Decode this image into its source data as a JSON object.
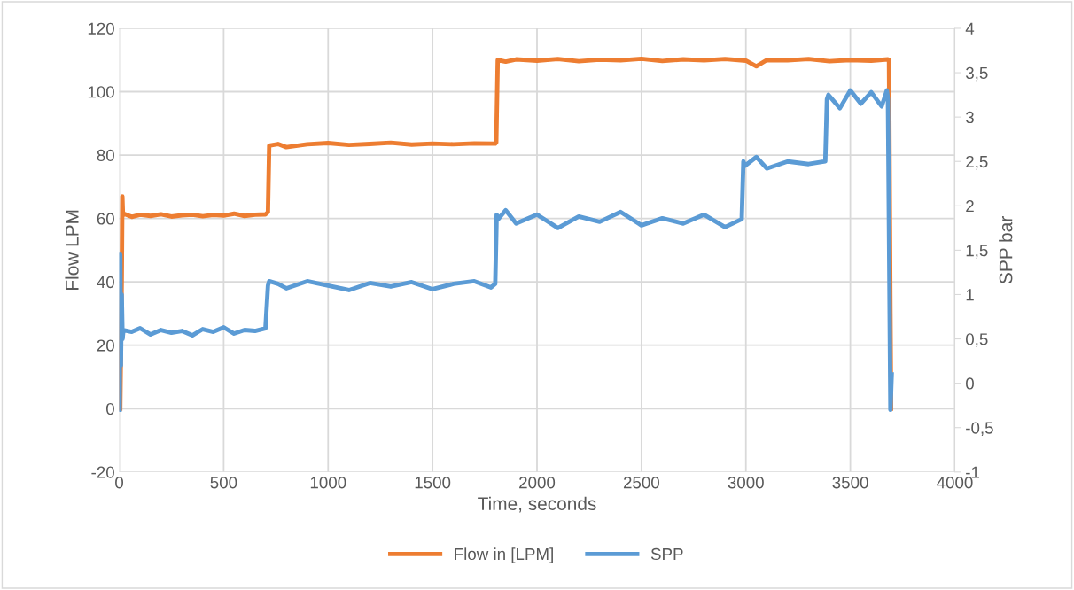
{
  "chart_data": {
    "type": "line",
    "xlabel": "Time, seconds",
    "ylabel": "Flow LPM",
    "y2label": "SPP bar",
    "xlim": [
      0,
      4000
    ],
    "xticks": [
      0,
      500,
      1000,
      1500,
      2000,
      2500,
      3000,
      3500,
      4000
    ],
    "ylim": [
      -20,
      120
    ],
    "yticks": [
      -20,
      0,
      20,
      40,
      60,
      80,
      100,
      120
    ],
    "y2lim": [
      -1,
      4
    ],
    "y2ticks": [
      {
        "value": -1,
        "label": "-1"
      },
      {
        "value": -0.5,
        "label": "-0,5"
      },
      {
        "value": 0,
        "label": "0"
      },
      {
        "value": 0.5,
        "label": "0,5"
      },
      {
        "value": 1,
        "label": "1"
      },
      {
        "value": 1.5,
        "label": "1,5"
      },
      {
        "value": 2,
        "label": "2"
      },
      {
        "value": 2.5,
        "label": "2,5"
      },
      {
        "value": 3,
        "label": "3"
      },
      {
        "value": 3.5,
        "label": "3,5"
      },
      {
        "value": 4,
        "label": "4"
      }
    ],
    "grid": true,
    "legend": "bottom",
    "line_style": "solid",
    "marker": "none",
    "series": [
      {
        "name": "Flow in [LPM]",
        "color": "#ed7d31",
        "x": [
          5,
          12,
          15,
          18,
          22,
          60,
          100,
          150,
          200,
          250,
          300,
          350,
          400,
          450,
          500,
          550,
          600,
          650,
          700,
          712,
          718,
          760,
          800,
          900,
          1000,
          1100,
          1200,
          1300,
          1400,
          1500,
          1600,
          1700,
          1800,
          1805,
          1812,
          1850,
          1900,
          2000,
          2100,
          2200,
          2300,
          2400,
          2500,
          2600,
          2700,
          2800,
          2900,
          3000,
          3050,
          3100,
          3200,
          3300,
          3400,
          3500,
          3600,
          3680,
          3685,
          3692,
          3695
        ],
        "values": [
          0,
          40,
          67,
          61,
          61.5,
          60.5,
          61.2,
          60.8,
          61.3,
          60.6,
          61,
          61.2,
          60.7,
          61.1,
          60.9,
          61.5,
          60.8,
          61.2,
          61.3,
          62,
          83,
          83.5,
          82.5,
          83.4,
          83.8,
          83.2,
          83.5,
          83.9,
          83.3,
          83.6,
          83.4,
          83.7,
          83.6,
          84,
          110,
          109.5,
          110.2,
          109.8,
          110.3,
          109.6,
          110.1,
          109.9,
          110.4,
          109.7,
          110.2,
          109.9,
          110.3,
          109.8,
          108,
          110,
          109.9,
          110.3,
          109.6,
          110,
          109.8,
          110.2,
          110,
          30,
          0
        ]
      },
      {
        "name": "SPP",
        "color": "#5b9bd5",
        "x": [
          2,
          5,
          8,
          12,
          16,
          20,
          60,
          100,
          150,
          200,
          250,
          300,
          350,
          400,
          450,
          500,
          550,
          600,
          650,
          700,
          712,
          718,
          760,
          800,
          900,
          1000,
          1100,
          1200,
          1300,
          1400,
          1500,
          1600,
          1700,
          1780,
          1800,
          1807,
          1815,
          1850,
          1900,
          2000,
          2100,
          2200,
          2300,
          2400,
          2500,
          2600,
          2700,
          2800,
          2900,
          2980,
          2988,
          2995,
          3050,
          3100,
          3200,
          3300,
          3380,
          3388,
          3395,
          3450,
          3500,
          3550,
          3600,
          3650,
          3675,
          3680,
          3692,
          3695,
          3698
        ],
        "values": [
          -0.3,
          1.45,
          0.2,
          1.0,
          0.5,
          0.6,
          0.58,
          0.62,
          0.55,
          0.6,
          0.57,
          0.59,
          0.54,
          0.61,
          0.58,
          0.63,
          0.56,
          0.6,
          0.59,
          0.62,
          1.1,
          1.15,
          1.12,
          1.07,
          1.15,
          1.1,
          1.05,
          1.13,
          1.09,
          1.14,
          1.06,
          1.12,
          1.15,
          1.08,
          1.12,
          1.9,
          1.85,
          1.95,
          1.8,
          1.9,
          1.75,
          1.88,
          1.82,
          1.93,
          1.78,
          1.86,
          1.8,
          1.9,
          1.76,
          1.85,
          2.5,
          2.45,
          2.55,
          2.42,
          2.5,
          2.47,
          2.5,
          3.2,
          3.25,
          3.1,
          3.3,
          3.15,
          3.28,
          3.12,
          3.3,
          3.2,
          -0.3,
          -0.1,
          0.1
        ],
        "axis": "y2"
      }
    ]
  }
}
